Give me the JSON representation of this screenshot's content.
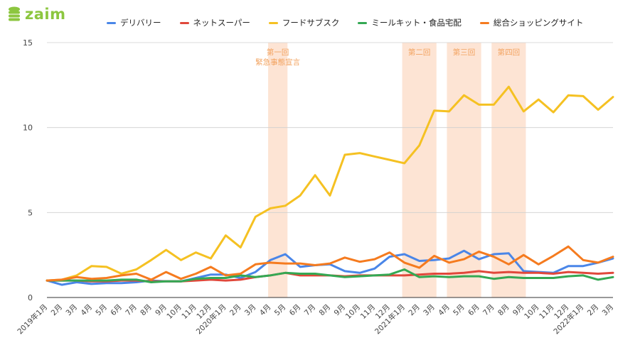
{
  "brand": {
    "name": "zaim",
    "color": "#8cc63f",
    "icon": "coin-stack-icon"
  },
  "chart_data": {
    "type": "line",
    "title": "",
    "xlabel": "",
    "ylabel": "",
    "ylim": [
      0,
      15
    ],
    "yticks": [
      0,
      5,
      10,
      15
    ],
    "grid": true,
    "legend_position": "top",
    "categories": [
      "2019年1月",
      "2月",
      "3月",
      "4月",
      "5月",
      "6月",
      "7月",
      "8月",
      "9月",
      "10月",
      "11月",
      "12月",
      "2020年1月",
      "2月",
      "3月",
      "4月",
      "5月",
      "6月",
      "7月",
      "8月",
      "9月",
      "10月",
      "11月",
      "12月",
      "2021年1月",
      "2月",
      "3月",
      "4月",
      "5月",
      "6月",
      "7月",
      "8月",
      "9月",
      "10月",
      "11月",
      "12月",
      "2022年1月",
      "2月",
      "3月"
    ],
    "series": [
      {
        "name": "デリバリー",
        "color": "#4a86e8",
        "values": [
          1.0,
          0.75,
          0.9,
          0.8,
          0.85,
          0.85,
          0.9,
          1.0,
          0.95,
          0.95,
          1.15,
          1.35,
          1.35,
          1.15,
          1.5,
          2.2,
          2.55,
          1.8,
          1.9,
          1.95,
          1.55,
          1.45,
          1.7,
          2.4,
          2.55,
          2.15,
          2.2,
          2.3,
          2.75,
          2.25,
          2.55,
          2.6,
          1.55,
          1.5,
          1.45,
          1.85,
          1.85,
          2.05,
          2.3
        ]
      },
      {
        "name": "ネットスーパー",
        "color": "#e0483b",
        "values": [
          1.0,
          1.0,
          1.0,
          0.95,
          0.95,
          1.0,
          1.0,
          0.95,
          0.95,
          0.95,
          1.0,
          1.05,
          1.0,
          1.05,
          1.2,
          1.3,
          1.45,
          1.3,
          1.3,
          1.3,
          1.25,
          1.3,
          1.3,
          1.3,
          1.3,
          1.35,
          1.4,
          1.4,
          1.45,
          1.55,
          1.45,
          1.5,
          1.45,
          1.45,
          1.4,
          1.5,
          1.45,
          1.4,
          1.45
        ]
      },
      {
        "name": "フードサブスク",
        "color": "#f5c122",
        "values": [
          1.0,
          1.05,
          1.3,
          1.85,
          1.8,
          1.4,
          1.65,
          2.2,
          2.8,
          2.2,
          2.65,
          2.3,
          3.65,
          2.95,
          4.75,
          5.25,
          5.4,
          6.0,
          7.2,
          6.0,
          8.4,
          8.5,
          8.3,
          8.1,
          7.9,
          8.95,
          11.0,
          10.95,
          11.9,
          11.35,
          11.35,
          12.4,
          10.95,
          11.65,
          10.9,
          11.9,
          11.85,
          11.05,
          11.8
        ]
      },
      {
        "name": "ミールキット・食品宅配",
        "color": "#34a853",
        "values": [
          1.0,
          1.0,
          1.0,
          1.0,
          1.0,
          1.05,
          1.05,
          0.9,
          0.95,
          0.95,
          1.1,
          1.15,
          1.15,
          1.3,
          1.2,
          1.3,
          1.45,
          1.4,
          1.4,
          1.3,
          1.2,
          1.25,
          1.3,
          1.35,
          1.65,
          1.2,
          1.25,
          1.2,
          1.25,
          1.25,
          1.1,
          1.2,
          1.15,
          1.15,
          1.15,
          1.25,
          1.3,
          1.05,
          1.2
        ]
      },
      {
        "name": "総合ショッピングサイト",
        "color": "#f57b1f",
        "values": [
          1.0,
          1.05,
          1.2,
          1.1,
          1.15,
          1.3,
          1.4,
          1.05,
          1.5,
          1.1,
          1.4,
          1.8,
          1.3,
          1.4,
          1.95,
          2.05,
          2.0,
          2.0,
          1.9,
          2.0,
          2.35,
          2.1,
          2.25,
          2.65,
          2.05,
          1.75,
          2.45,
          2.05,
          2.25,
          2.7,
          2.4,
          1.95,
          2.5,
          1.95,
          2.45,
          3.0,
          2.2,
          2.05,
          2.4
        ]
      }
    ],
    "annotations": [
      {
        "label_lines": [
          "第一回",
          "緊急事態宣言"
        ],
        "from_index": 15,
        "to_index": 16
      },
      {
        "label_lines": [
          "第二回"
        ],
        "from_index": 24,
        "to_index": 26
      },
      {
        "label_lines": [
          "第三回"
        ],
        "from_index": 27,
        "to_index": 29
      },
      {
        "label_lines": [
          "第四回"
        ],
        "from_index": 30,
        "to_index": 32
      }
    ],
    "annotation_color": "#fde4d4",
    "annotation_text_color": "#f2a25e"
  }
}
